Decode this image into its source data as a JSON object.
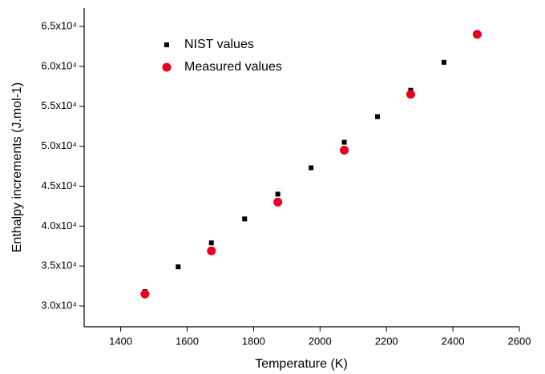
{
  "chart_data": {
    "type": "scatter",
    "x_label": "Temperature (K)",
    "y_label": "Enthalpy increments (J.mol-1)",
    "xlim": [
      1290,
      2600
    ],
    "xticks": [
      1400,
      1600,
      1800,
      2000,
      2200,
      2400,
      2600
    ],
    "ylim": [
      27400,
      67300
    ],
    "yticks": [
      {
        "value": 30000,
        "label": "3.0x10⁴"
      },
      {
        "value": 35000,
        "label": "3.5x10⁴"
      },
      {
        "value": 40000,
        "label": "4.0x10⁴"
      },
      {
        "value": 45000,
        "label": "4.5x10⁴"
      },
      {
        "value": 50000,
        "label": "5.0x10⁴"
      },
      {
        "value": 55000,
        "label": "5.5x10⁴"
      },
      {
        "value": 60000,
        "label": "6.0x10⁴"
      },
      {
        "value": 65000,
        "label": "6.5x10⁴"
      }
    ],
    "legend": "upper-left",
    "series": [
      {
        "name": "NIST values",
        "color": "#000000",
        "marker": "square",
        "x": [
          1473,
          1573,
          1673,
          1773,
          1873,
          1973,
          2073,
          2173,
          2273,
          2373
        ],
        "values": [
          31800,
          34900,
          37900,
          40900,
          44000,
          47300,
          50500,
          53700,
          57000,
          60500
        ]
      },
      {
        "name": "Measured values",
        "color": "#e8001c",
        "marker": "circle",
        "x": [
          1473,
          1673,
          1873,
          2073,
          2273,
          2473
        ],
        "values": [
          31500,
          36900,
          43000,
          49500,
          56500,
          64000
        ]
      }
    ]
  }
}
